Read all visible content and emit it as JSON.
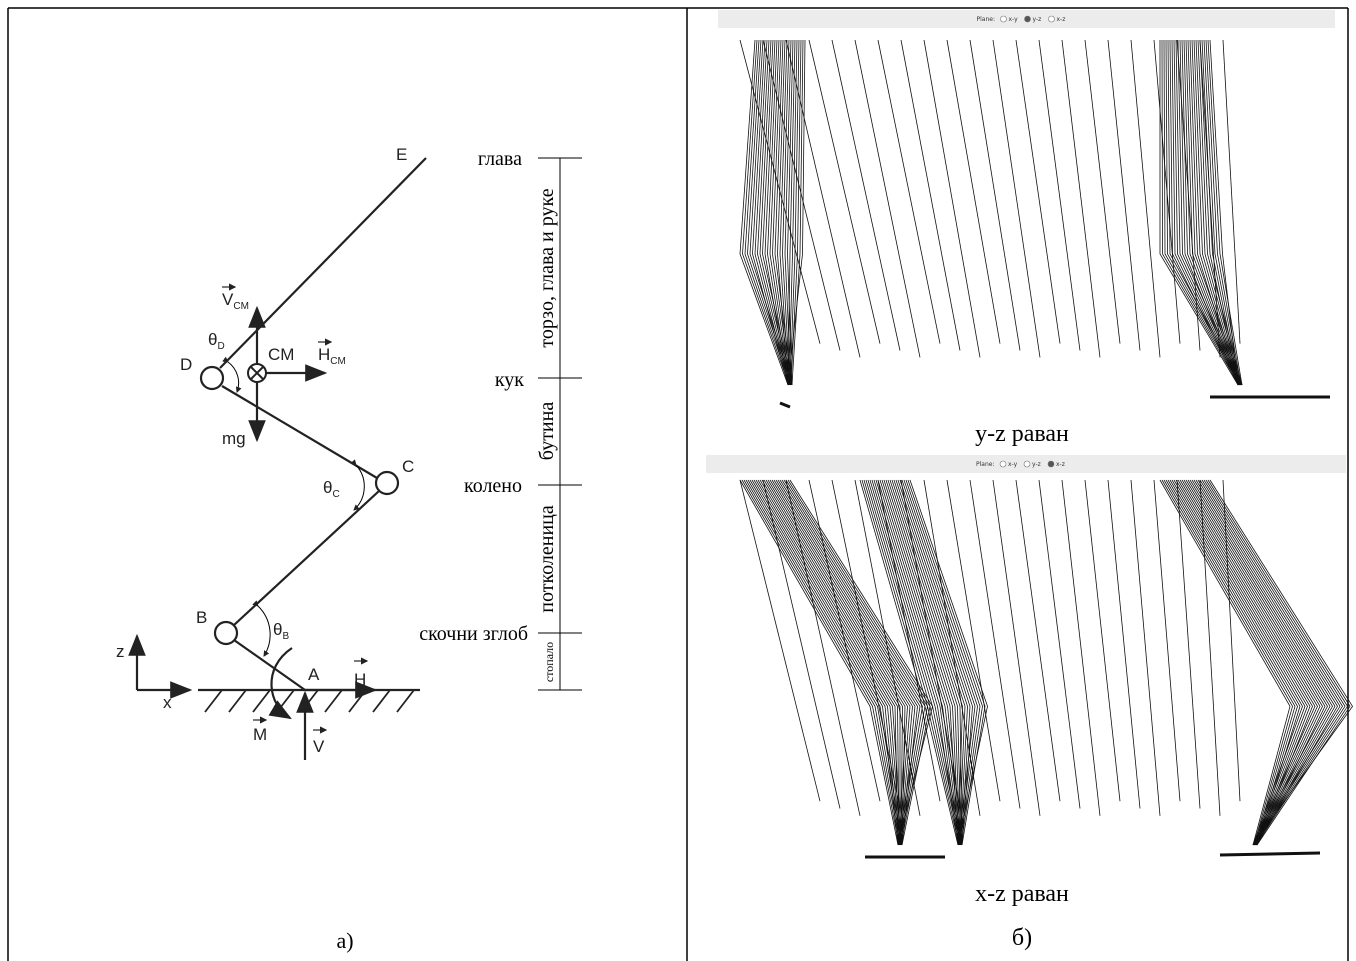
{
  "left_panel": {
    "points": {
      "A": "A",
      "B": "B",
      "C": "C",
      "D": "D",
      "E": "E"
    },
    "cm": "CM",
    "forces": {
      "v_cm": {
        "main": "V",
        "sub": "CM"
      },
      "h_cm": {
        "main": "H",
        "sub": "CM"
      },
      "mg": "mg",
      "h": "H",
      "m": "M",
      "v": "V"
    },
    "angles": {
      "theta_d": {
        "main": "θ",
        "sub": "D"
      },
      "theta_c": {
        "main": "θ",
        "sub": "C"
      },
      "theta_b": {
        "main": "θ",
        "sub": "B"
      }
    },
    "axes": {
      "z": "z",
      "x": "x"
    },
    "joints": {
      "head": "глава",
      "hip": "кук",
      "knee": "колено",
      "ankle": "скочни зглоб"
    },
    "segments": {
      "trunk": "торзо, глава и руке",
      "thigh": "бутина",
      "shank": "потколеница",
      "foot": "стопало"
    },
    "caption": "а)"
  },
  "right_panel": {
    "views": [
      {
        "toolbar": {
          "label": "Plane:",
          "options": [
            "x-y",
            "y-z",
            "x-z"
          ],
          "selected": 1
        },
        "caption": "y-z раван"
      },
      {
        "toolbar": {
          "label": "Plane:",
          "options": [
            "x-y",
            "y-z",
            "x-z"
          ],
          "selected": 2
        },
        "caption": "x-z раван"
      }
    ],
    "caption": "б)"
  }
}
